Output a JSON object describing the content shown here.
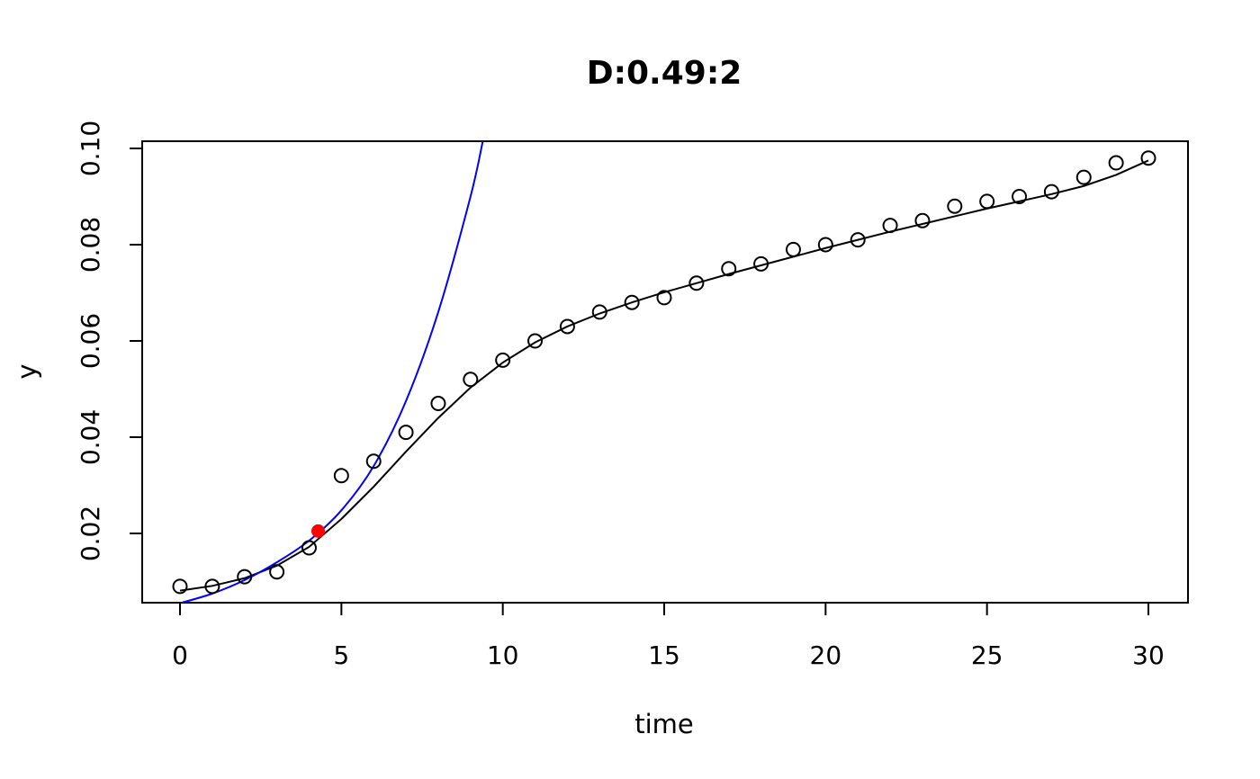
{
  "chart_data": {
    "type": "scatter",
    "title": "D:0.49:2",
    "xlabel": "time",
    "ylabel": "y",
    "xlim": [
      0,
      30
    ],
    "ylim": [
      0.005,
      0.1
    ],
    "x_ticks": [
      0,
      5,
      10,
      15,
      20,
      25,
      30
    ],
    "x_tick_labels": [
      "0",
      "5",
      "10",
      "15",
      "20",
      "25",
      "30"
    ],
    "y_ticks": [
      0.02,
      0.04,
      0.06,
      0.08,
      0.1
    ],
    "y_tick_labels": [
      "0.02",
      "0.04",
      "0.06",
      "0.08",
      "0.10"
    ],
    "grid": false,
    "series": [
      {
        "kind": "points",
        "marker": "open-circle",
        "color": "#000000",
        "x": [
          0,
          1,
          2,
          3,
          4,
          5,
          6,
          7,
          8,
          9,
          10,
          11,
          12,
          13,
          14,
          15,
          16,
          17,
          18,
          19,
          20,
          21,
          22,
          23,
          24,
          25,
          26,
          27,
          28,
          29,
          30
        ],
        "y": [
          0.009,
          0.009,
          0.011,
          0.012,
          0.017,
          0.032,
          0.035,
          0.041,
          0.047,
          0.052,
          0.056,
          0.06,
          0.063,
          0.066,
          0.068,
          0.069,
          0.072,
          0.075,
          0.076,
          0.079,
          0.08,
          0.081,
          0.084,
          0.085,
          0.088,
          0.089,
          0.09,
          0.091,
          0.094,
          0.097,
          0.098
        ]
      },
      {
        "kind": "line",
        "color": "#000000",
        "x": [
          0,
          1,
          2,
          3,
          4,
          5,
          6,
          7,
          8,
          9,
          10,
          11,
          12,
          13,
          14,
          15,
          16,
          17,
          18,
          19,
          20,
          21,
          22,
          23,
          24,
          25,
          26,
          27,
          28,
          29,
          30
        ],
        "y": [
          0.0081,
          0.0091,
          0.0107,
          0.0133,
          0.0172,
          0.023,
          0.0297,
          0.037,
          0.044,
          0.0503,
          0.0555,
          0.0597,
          0.063,
          0.0657,
          0.068,
          0.0701,
          0.072,
          0.0739,
          0.0757,
          0.0775,
          0.0793,
          0.081,
          0.0827,
          0.0843,
          0.0859,
          0.0875,
          0.089,
          0.0905,
          0.0922,
          0.0945,
          0.0975
        ]
      },
      {
        "kind": "curve",
        "color": "#0000ff",
        "x": [
          0,
          1,
          2,
          3,
          4,
          5,
          6,
          7,
          8,
          9,
          9.38
        ],
        "y": [
          0.0055,
          0.0075,
          0.0103,
          0.014,
          0.0185,
          0.0248,
          0.034,
          0.0475,
          0.066,
          0.09,
          0.1015
        ]
      },
      {
        "kind": "highlight-point",
        "color": "#ff0000",
        "x": [
          4.28
        ],
        "y": [
          0.0205
        ]
      }
    ]
  }
}
